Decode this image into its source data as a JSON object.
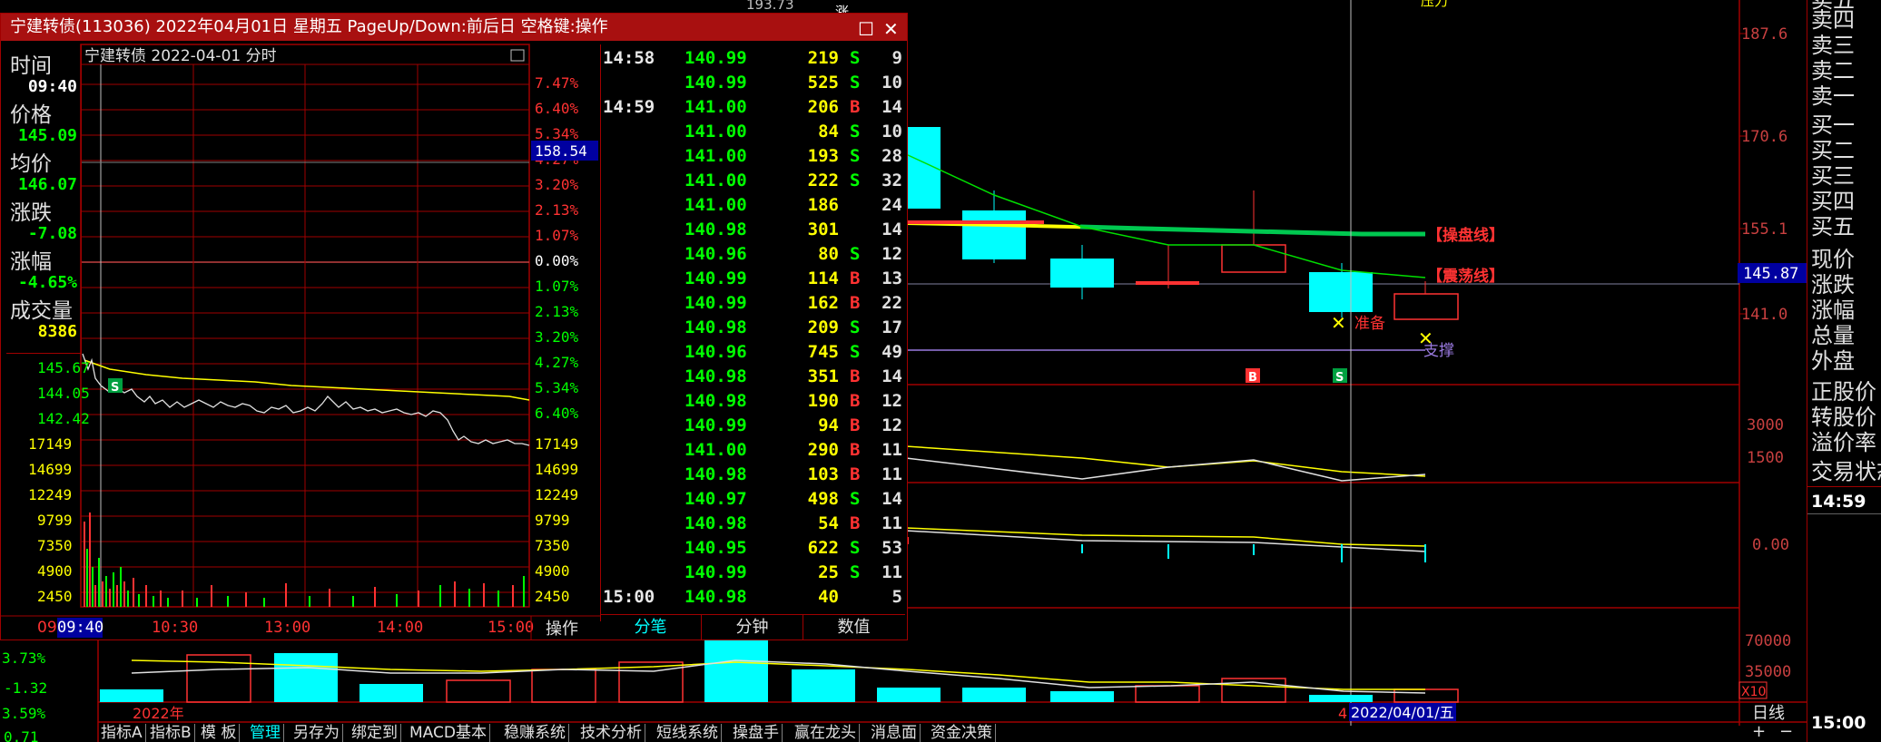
{
  "colors": {
    "up": "#ff3232",
    "down": "#00ff00",
    "accent": "#00ffff",
    "yellow": "#ffff00",
    "frame": "#a00000"
  },
  "main": {
    "price_ticks": [
      "187.6",
      "170.6",
      "155.1",
      "141.0"
    ],
    "current_price_badge": "145.87",
    "mid_ticks": [
      "3000",
      "1500"
    ],
    "lower_tick": "0.00",
    "volume_ticks": [
      "70000",
      "35000"
    ],
    "volume_scale": "X10",
    "line_labels": {
      "operate_line": "【操盘线】",
      "shock_line": "【震荡线】",
      "prepare": "准备",
      "support": "支撑"
    },
    "signals": {
      "buy": "B",
      "sell": "S"
    },
    "date_cursor": "2022/04/01/五",
    "date_prefix": "4",
    "year_label": "2022年",
    "period_label": "日线",
    "top_value": "193.73",
    "top_label": "涨",
    "top_right_text": "压力"
  },
  "left_edge_values": [
    "3.73%",
    "-1.32",
    "3.59%",
    "0.71"
  ],
  "right_panel": {
    "labels": [
      "卖四",
      "卖三",
      "卖二",
      "卖一",
      "买一",
      "买二",
      "买三",
      "买四",
      "买五",
      "现价",
      "涨跌",
      "涨幅",
      "总量",
      "外盘",
      "正股价",
      "转股价",
      "溢价率",
      "交易状态"
    ],
    "top_partial": "卖五",
    "time_1": "14:59",
    "time_2": "15:00"
  },
  "popup": {
    "title": "宁建转债(113036) 2022年04月01日 星期五 PageUp/Down:前后日 空格键:操作",
    "max_icon": "☐",
    "close_icon": "✕",
    "chart_title": "宁建转债  2022-04-01 分时",
    "info": [
      {
        "label": "时间",
        "value": "09:40",
        "color": "#ffffff"
      },
      {
        "label": "价格",
        "value": "145.09",
        "color": "#00ff00"
      },
      {
        "label": "均价",
        "value": "146.07",
        "color": "#00ff00"
      },
      {
        "label": "涨跌",
        "value": "-7.08",
        "color": "#00ff00"
      },
      {
        "label": "涨幅",
        "value": "-4.65%",
        "color": "#00ff00"
      },
      {
        "label": "成交量",
        "value": "8386",
        "color": "#ffff00"
      }
    ],
    "price_axis_left": [
      "145.67",
      "144.05",
      "142.42"
    ],
    "pct_axis_right": [
      "7.47%",
      "6.40%",
      "5.34%",
      "4.27%",
      "3.20%",
      "2.13%",
      "1.07%",
      "0.00%",
      "1.07%",
      "2.13%",
      "3.20%",
      "4.27%",
      "5.34%",
      "6.40%"
    ],
    "cursor_price": "158.54",
    "volume_axis": [
      "17149",
      "14699",
      "12249",
      "9799",
      "7350",
      "4900",
      "2450"
    ],
    "time_axis": [
      "09:40",
      "10:30",
      "13:00",
      "14:00",
      "15:00"
    ],
    "time_axis_prefix": "09",
    "operate_button": "操作",
    "tabs": [
      "分笔",
      "分钟",
      "数值"
    ],
    "ticks": [
      {
        "time": "14:58",
        "price": "140.99",
        "vol": "219",
        "side": "S",
        "n": "9"
      },
      {
        "time": "",
        "price": "140.99",
        "vol": "525",
        "side": "S",
        "n": "10"
      },
      {
        "time": "14:59",
        "price": "141.00",
        "vol": "206",
        "side": "B",
        "n": "14"
      },
      {
        "time": "",
        "price": "141.00",
        "vol": "84",
        "side": "S",
        "n": "10"
      },
      {
        "time": "",
        "price": "141.00",
        "vol": "193",
        "side": "S",
        "n": "28"
      },
      {
        "time": "",
        "price": "141.00",
        "vol": "222",
        "side": "S",
        "n": "32"
      },
      {
        "time": "",
        "price": "141.00",
        "vol": "186",
        "side": "",
        "n": "24"
      },
      {
        "time": "",
        "price": "140.98",
        "vol": "301",
        "side": "",
        "n": "14"
      },
      {
        "time": "",
        "price": "140.96",
        "vol": "80",
        "side": "S",
        "n": "12"
      },
      {
        "time": "",
        "price": "140.99",
        "vol": "114",
        "side": "B",
        "n": "13"
      },
      {
        "time": "",
        "price": "140.99",
        "vol": "162",
        "side": "B",
        "n": "22"
      },
      {
        "time": "",
        "price": "140.98",
        "vol": "209",
        "side": "S",
        "n": "17"
      },
      {
        "time": "",
        "price": "140.96",
        "vol": "745",
        "side": "S",
        "n": "49"
      },
      {
        "time": "",
        "price": "140.98",
        "vol": "351",
        "side": "B",
        "n": "14"
      },
      {
        "time": "",
        "price": "140.98",
        "vol": "190",
        "side": "B",
        "n": "12"
      },
      {
        "time": "",
        "price": "140.99",
        "vol": "94",
        "side": "B",
        "n": "12"
      },
      {
        "time": "",
        "price": "141.00",
        "vol": "290",
        "side": "B",
        "n": "11"
      },
      {
        "time": "",
        "price": "140.98",
        "vol": "103",
        "side": "B",
        "n": "11"
      },
      {
        "time": "",
        "price": "140.97",
        "vol": "498",
        "side": "S",
        "n": "14"
      },
      {
        "time": "",
        "price": "140.98",
        "vol": "54",
        "side": "B",
        "n": "11"
      },
      {
        "time": "",
        "price": "140.95",
        "vol": "622",
        "side": "S",
        "n": "53"
      },
      {
        "time": "",
        "price": "140.99",
        "vol": "25",
        "side": "S",
        "n": "11"
      },
      {
        "time": "15:00",
        "price": "140.98",
        "vol": "40",
        "side": "",
        "n": "5"
      }
    ]
  },
  "bottom_bar": {
    "items": [
      "指标A",
      "指标B",
      "模 板",
      "管理",
      "另存为",
      "绑定到",
      "MACD基本",
      "稳赚系统",
      "技术分析",
      "短线系统",
      "操盘手",
      "赢在龙头",
      "消息面",
      "资金决策"
    ],
    "active_index": 3,
    "plus": "+",
    "minus": "−"
  }
}
